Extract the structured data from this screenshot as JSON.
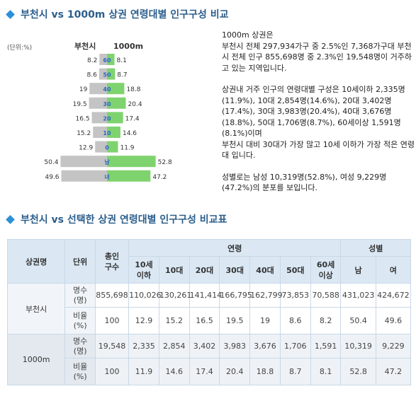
{
  "section1": {
    "title": "부천시 vs 1000m 상권 연령대별 인구구성 비교"
  },
  "section2": {
    "title": "부천시 vs 선택한 상권 연령대별 인구구성 비교표"
  },
  "colors": {
    "bar_left": "#c4c4c4",
    "bar_right": "#7fd36e",
    "label": "#2a66c6",
    "title": "#2c5e8c"
  },
  "chart_data": {
    "type": "bar",
    "unit_label": "(단위:%)",
    "left_series_name": "부천시",
    "right_series_name": "1000m",
    "categories": [
      "60",
      "50",
      "40",
      "30",
      "20",
      "10",
      "0",
      "남",
      "녀"
    ],
    "series": [
      {
        "name": "부천시",
        "values": [
          8.2,
          8.6,
          19,
          19.5,
          16.5,
          15.2,
          12.9,
          50.4,
          49.6
        ]
      },
      {
        "name": "1000m",
        "values": [
          8.1,
          8.7,
          18.8,
          20.4,
          17.4,
          14.6,
          11.9,
          52.8,
          47.2
        ]
      }
    ],
    "value_labels_left": [
      "8.2",
      "8.6",
      "19",
      "19.5",
      "16.5",
      "15.2",
      "12.9",
      "50.4",
      "49.6"
    ],
    "value_labels_right": [
      "8.1",
      "8.7",
      "18.8",
      "20.4",
      "17.4",
      "14.6",
      "11.9",
      "52.8",
      "47.2"
    ]
  },
  "description": {
    "p1": "1000m 상권은\n부천시 전체 297,934가구 중 2.5%인 7,368가구대 부천시 전체 인구 855,698명 중 2.3%인 19,548명이 거주하고 있는 지역입니다.",
    "p2": "상권내 거주 인구의 연령대별 구성은 10세이하 2,335명(11.9%), 10대 2,854명(14.6%), 20대 3,402명(17.4%), 30대 3,983명(20.4%), 40대 3,676명(18.8%), 50대 1,706명(8.7%), 60세이상 1,591명(8.1%)이며\n부천시 대비 30대가 가장 많고 10세 이하가 가장 적은 연령대 입니다.",
    "p3": "성별로는 남성 10,319명(52.8%), 여성 9,229명(47.2%)의 분포를 보입니다."
  },
  "table": {
    "headers": {
      "area": "상권명",
      "unit": "단위",
      "total": "총인\n구수",
      "age": "연령",
      "gender": "성별",
      "ages": [
        "10세\n이하",
        "10대",
        "20대",
        "30대",
        "40대",
        "50대",
        "60세\n이상"
      ],
      "genders": [
        "남",
        "여"
      ]
    },
    "rows": [
      {
        "area": "부천시",
        "count_unit": "명수\n(명)",
        "count": [
          "855,698",
          "110,026",
          "130,261",
          "141,414",
          "166,795",
          "162,799",
          "73,853",
          "70,588",
          "431,023",
          "424,672"
        ],
        "ratio_unit": "비율\n(%)",
        "ratio": [
          "100",
          "12.9",
          "15.2",
          "16.5",
          "19.5",
          "19",
          "8.6",
          "8.2",
          "50.4",
          "49.6"
        ]
      },
      {
        "area": "1000m",
        "count_unit": "명수\n(명)",
        "count": [
          "19,548",
          "2,335",
          "2,854",
          "3,402",
          "3,983",
          "3,676",
          "1,706",
          "1,591",
          "10,319",
          "9,229"
        ],
        "ratio_unit": "비율\n(%)",
        "ratio": [
          "100",
          "11.9",
          "14.6",
          "17.4",
          "20.4",
          "18.8",
          "8.7",
          "8.1",
          "52.8",
          "47.2"
        ]
      }
    ]
  }
}
